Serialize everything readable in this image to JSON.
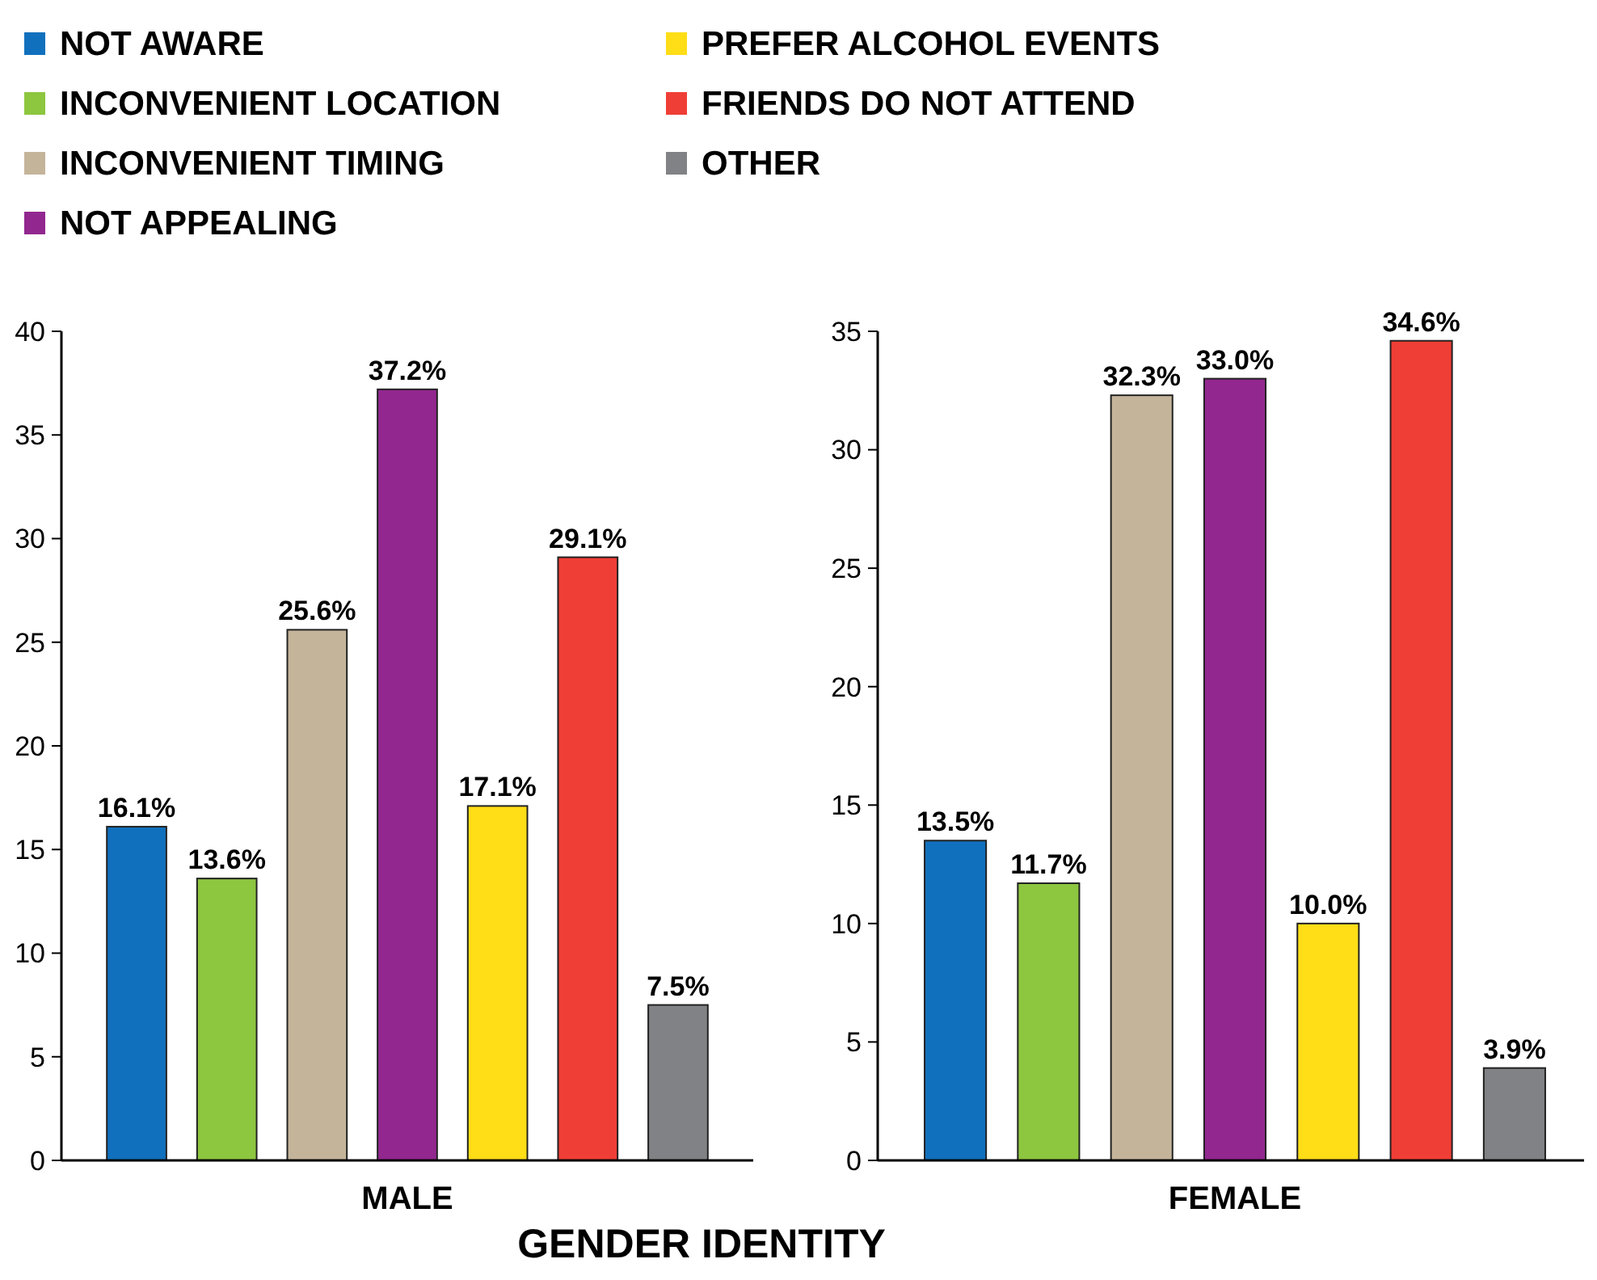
{
  "chart_data": [
    {
      "type": "bar",
      "categories": [
        "MALE"
      ],
      "xlabel": "GENDER IDENTITY",
      "legend": "top",
      "ylim": [
        0,
        40
      ],
      "yticks": [
        0,
        5,
        10,
        15,
        20,
        25,
        30,
        35,
        40
      ],
      "series": [
        {
          "name": "NOT AWARE",
          "color": "#1170bd",
          "values": [
            16.1
          ],
          "value_labels": [
            "16.1%"
          ]
        },
        {
          "name": "INCONVENIENT LOCATION",
          "color": "#8dc63f",
          "values": [
            13.6
          ],
          "value_labels": [
            "13.6%"
          ]
        },
        {
          "name": "INCONVENIENT TIMING",
          "color": "#c4b49a",
          "values": [
            25.6
          ],
          "value_labels": [
            "25.6%"
          ]
        },
        {
          "name": "NOT APPEALING",
          "color": "#92278f",
          "values": [
            37.2
          ],
          "value_labels": [
            "37.2%"
          ]
        },
        {
          "name": "PREFER ALCOHOL EVENTS",
          "color": "#ffdd17",
          "values": [
            17.1
          ],
          "value_labels": [
            "17.1%"
          ]
        },
        {
          "name": "FRIENDS DO NOT ATTEND",
          "color": "#ef3e36",
          "values": [
            29.1
          ],
          "value_labels": [
            "29.1%"
          ]
        },
        {
          "name": "OTHER",
          "color": "#808285",
          "values": [
            7.5
          ],
          "value_labels": [
            "7.5%"
          ]
        }
      ]
    },
    {
      "type": "bar",
      "categories": [
        "FEMALE"
      ],
      "ylim": [
        0,
        35
      ],
      "yticks": [
        0,
        5,
        10,
        15,
        20,
        25,
        30,
        35
      ],
      "series": [
        {
          "color": "#1170bd",
          "values": [
            13.5
          ],
          "value_labels": [
            "13.5%"
          ]
        },
        {
          "color": "#8dc63f",
          "values": [
            11.7
          ],
          "value_labels": [
            "11.7%"
          ]
        },
        {
          "color": "#c4b49a",
          "values": [
            32.3
          ],
          "value_labels": [
            "32.3%"
          ]
        },
        {
          "color": "#92278f",
          "values": [
            33.0
          ],
          "value_labels": [
            "33.0%"
          ]
        },
        {
          "color": "#ffdd17",
          "values": [
            10.0
          ],
          "value_labels": [
            "10.0%"
          ]
        },
        {
          "color": "#ef3e36",
          "values": [
            34.6
          ],
          "value_labels": [
            "34.6%"
          ]
        },
        {
          "color": "#808285",
          "values": [
            3.9
          ],
          "value_labels": [
            "3.9%"
          ]
        }
      ]
    }
  ]
}
